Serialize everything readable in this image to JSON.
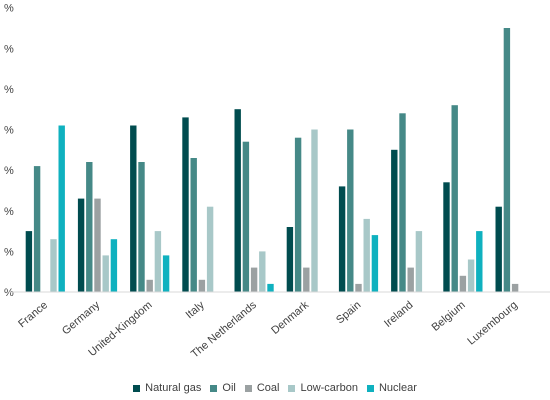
{
  "chart_data": {
    "type": "bar",
    "title": "",
    "xlabel": "",
    "ylabel": "",
    "ylim": [
      0,
      65
    ],
    "grid": false,
    "legend_position": "bottom",
    "categories": [
      "France",
      "Germany",
      "United-Kingdom",
      "Italy",
      "The Netherlands",
      "Denmark",
      "Spain",
      "Ireland",
      "Belgium",
      "Luxembourg"
    ],
    "series": [
      {
        "name": "Natural gas",
        "color": "#004c4f",
        "values": [
          15,
          23,
          41,
          43,
          45,
          16,
          26,
          35,
          27,
          21
        ]
      },
      {
        "name": "Oil",
        "color": "#458987",
        "values": [
          31,
          32,
          32,
          33,
          37,
          38,
          40,
          44,
          46,
          65
        ]
      },
      {
        "name": "Coal",
        "color": "#9ba1a2",
        "values": [
          0,
          23,
          3,
          3,
          6,
          6,
          2,
          6,
          4,
          2
        ]
      },
      {
        "name": "Low-carbon",
        "color": "#a8c8c8",
        "values": [
          13,
          9,
          15,
          21,
          10,
          40,
          18,
          15,
          8,
          0
        ]
      },
      {
        "name": "Nuclear",
        "color": "#0fb1bf",
        "values": [
          41,
          13,
          9,
          0,
          2,
          0,
          14,
          0,
          15,
          0
        ]
      }
    ]
  }
}
